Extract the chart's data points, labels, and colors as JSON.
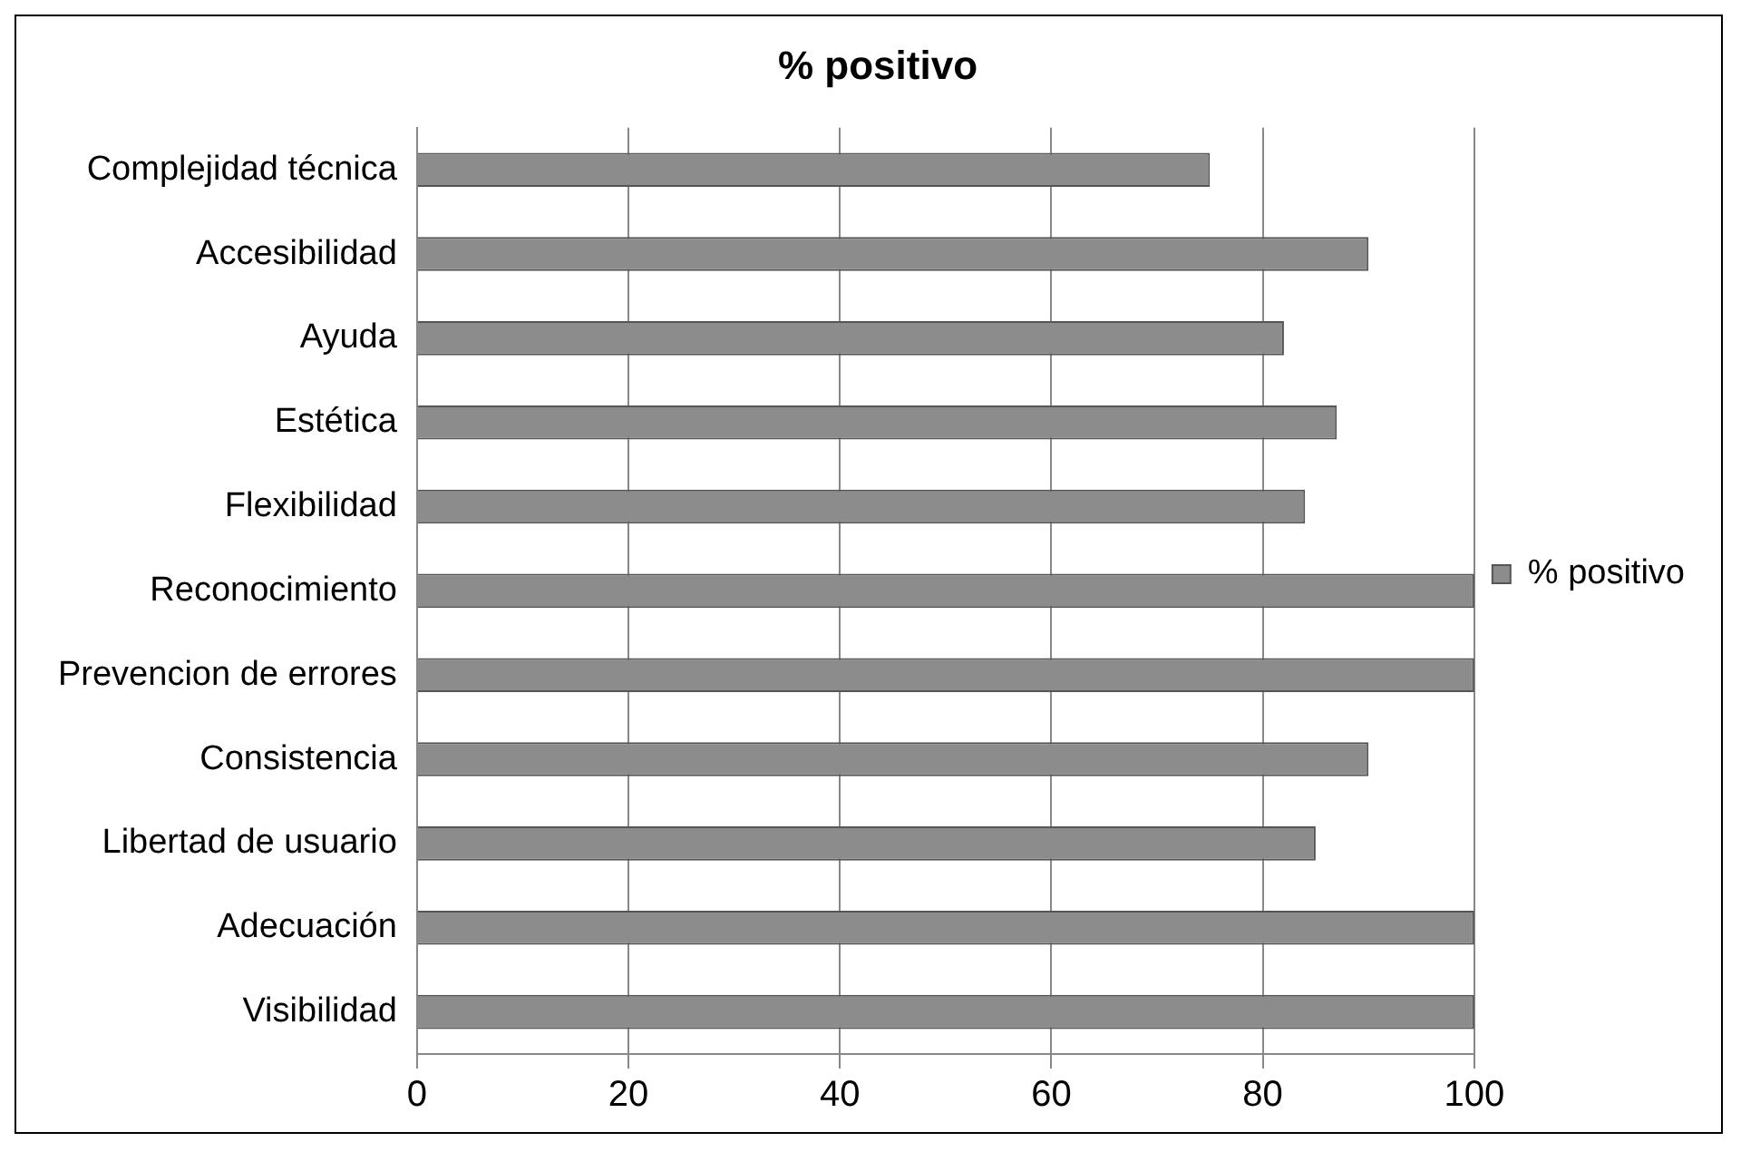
{
  "chart_data": {
    "type": "bar",
    "orientation": "horizontal",
    "title": "% positivo",
    "categories": [
      "Complejidad técnica",
      "Accesibilidad",
      "Ayuda",
      "Estética",
      "Flexibilidad",
      "Reconocimiento",
      "Prevencion de errores",
      "Consistencia",
      "Libertad de usuario",
      "Adecuación",
      "Visibilidad"
    ],
    "series": [
      {
        "name": "% positivo",
        "color": "#8c8c8c",
        "values": [
          75,
          90,
          82,
          87,
          84,
          100,
          100,
          90,
          85,
          100,
          100
        ]
      }
    ],
    "xlim": [
      0,
      100
    ],
    "xticks": [
      0,
      20,
      40,
      60,
      80,
      100
    ],
    "grid": "x",
    "legend": "right"
  }
}
